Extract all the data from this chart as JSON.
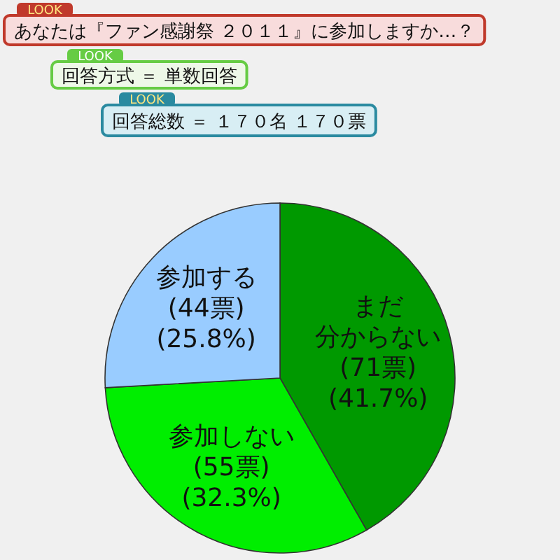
{
  "chart_data": {
    "type": "pie",
    "title": "あなたは『ファン感謝祭 ２０１１』に参加しますか…？",
    "subtitle": "回答方式 ＝ 単数回答",
    "annotations": [
      "回答総数 ＝ １７０名 １７０票",
      "LOOK",
      "LOOK",
      "LOOK"
    ],
    "categories": [
      "まだ分からない",
      "参加しない",
      "参加する"
    ],
    "values": [
      71,
      55,
      44
    ],
    "value_labels": [
      "(71票)\n(41.7%)",
      "(55票)\n(32.3%)",
      "(44票)\n(25.8%)"
    ],
    "colors": [
      "#009900",
      "#00ee00",
      "#99ccff"
    ]
  }
}
